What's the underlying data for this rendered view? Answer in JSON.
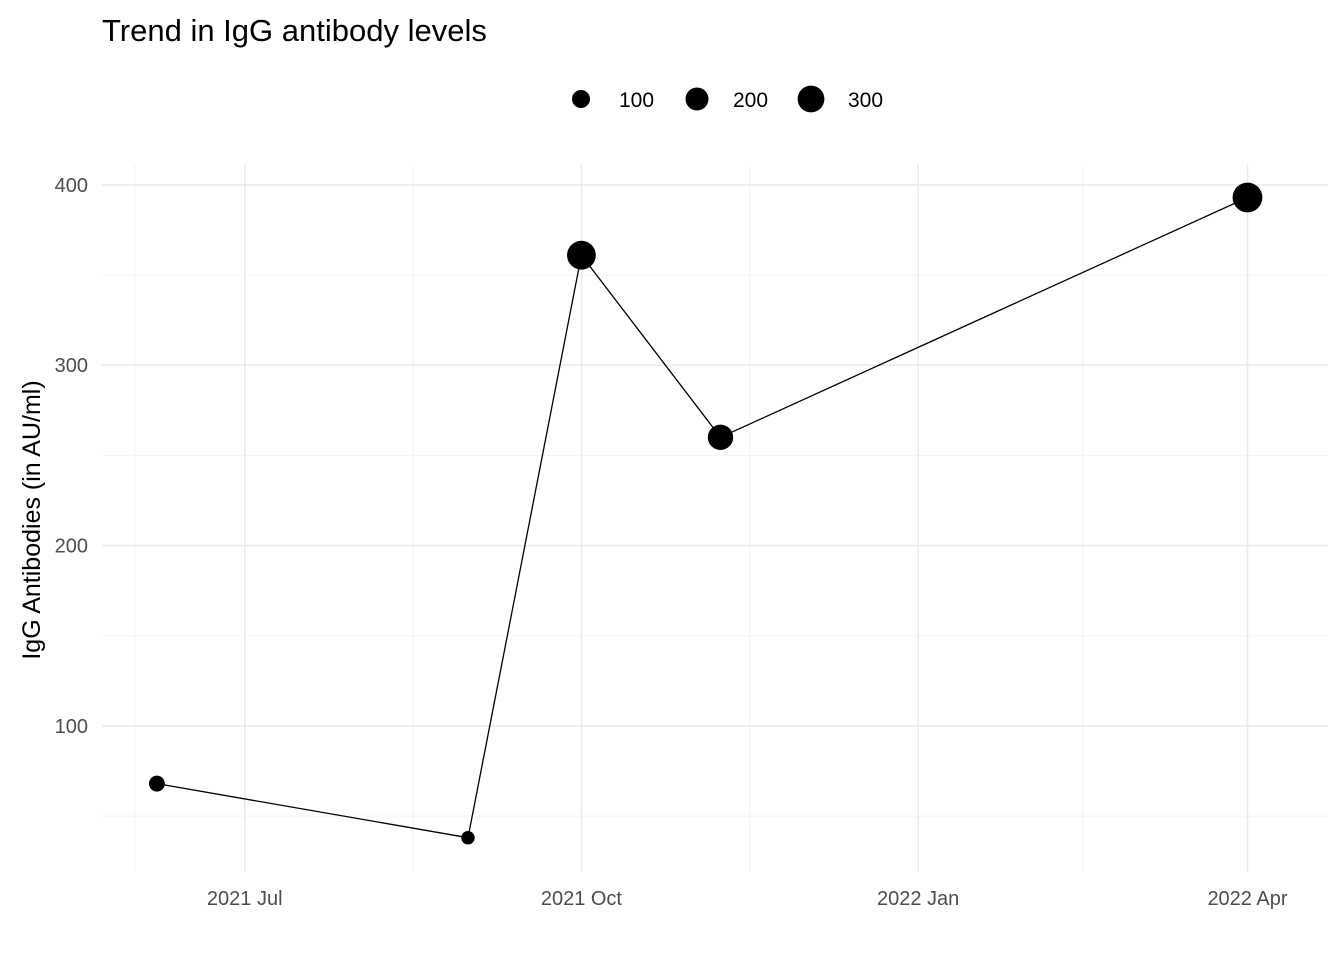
{
  "chart_data": {
    "type": "line",
    "title": "Trend in IgG antibody levels",
    "xlabel": "",
    "ylabel": "IgG Antibodies (in AU/ml)",
    "x_axis": {
      "scale": "date",
      "range": [
        "2021-05-23",
        "2022-04-23"
      ],
      "ticks": [
        {
          "date": "2021-07-01",
          "label": "2021 Jul"
        },
        {
          "date": "2021-10-01",
          "label": "2021 Oct"
        },
        {
          "date": "2022-01-01",
          "label": "2022 Jan"
        },
        {
          "date": "2022-04-01",
          "label": "2022 Apr"
        }
      ],
      "minor_ticks": [
        "2021-06-01",
        "2021-08-16",
        "2021-11-16",
        "2022-02-15"
      ]
    },
    "y_axis": {
      "range": [
        19,
        411
      ],
      "ticks": [
        100,
        200,
        300,
        400
      ],
      "minor_ticks": [
        50,
        150,
        250,
        350
      ]
    },
    "grid": true,
    "legend": {
      "position": "top",
      "type": "point size",
      "entries": [
        {
          "label": "100",
          "value": 100
        },
        {
          "label": "200",
          "value": 200
        },
        {
          "label": "300",
          "value": 300
        }
      ]
    },
    "series": [
      {
        "color": "#000000",
        "points": [
          {
            "x": "2021-06-07",
            "y": 68
          },
          {
            "x": "2021-08-31",
            "y": 38
          },
          {
            "x": "2021-10-01",
            "y": 361
          },
          {
            "x": "2021-11-08",
            "y": 260
          },
          {
            "x": "2022-04-01",
            "y": 393
          }
        ]
      }
    ]
  }
}
